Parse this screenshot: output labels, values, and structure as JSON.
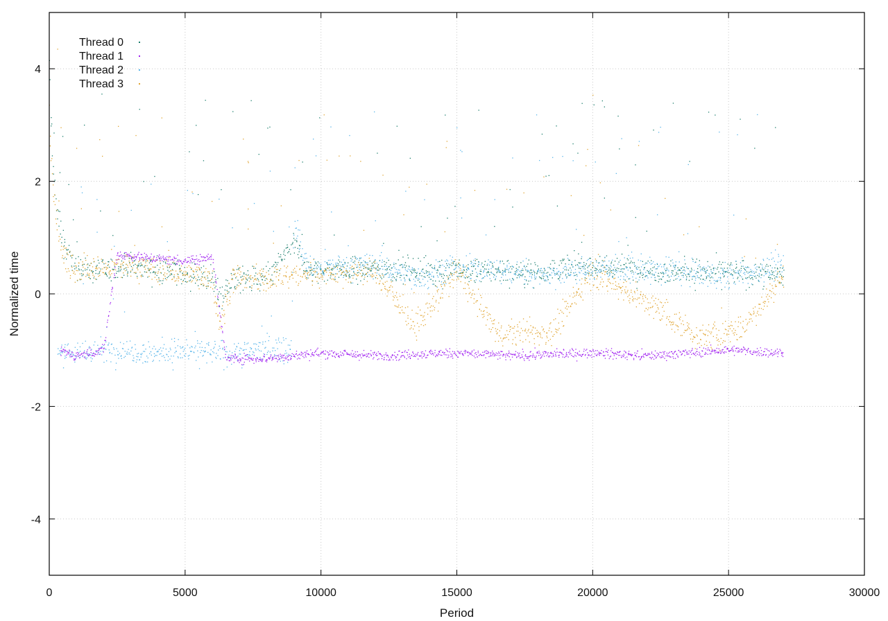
{
  "chart_data": {
    "type": "scatter",
    "xlabel": "Period",
    "ylabel": "Normalized time",
    "xlim": [
      0,
      30000
    ],
    "ylim": [
      -5,
      5
    ],
    "x_ticks": [
      0,
      5000,
      10000,
      15000,
      20000,
      25000,
      30000
    ],
    "y_ticks": [
      -4,
      -2,
      0,
      2,
      4
    ],
    "grid": true,
    "legend_position": "top-left",
    "x_data_extent": [
      0,
      27000
    ],
    "series": [
      {
        "name": "Thread 0",
        "color": "#1a7d6b",
        "marker": "dot",
        "description_points": [
          [
            0,
            4.0
          ],
          [
            150,
            2.2
          ],
          [
            300,
            1.4
          ],
          [
            600,
            0.8
          ],
          [
            1000,
            0.45
          ],
          [
            2000,
            0.4
          ],
          [
            3000,
            0.5
          ],
          [
            4000,
            0.45
          ],
          [
            5000,
            0.35
          ],
          [
            6000,
            0.3
          ],
          [
            6300,
            -0.1
          ],
          [
            6700,
            0.25
          ],
          [
            8000,
            0.25
          ],
          [
            9000,
            0.9
          ],
          [
            9500,
            0.4
          ],
          [
            12000,
            0.45
          ],
          [
            15000,
            0.4
          ],
          [
            18000,
            0.4
          ],
          [
            20000,
            0.5
          ],
          [
            23000,
            0.4
          ],
          [
            27000,
            0.35
          ]
        ]
      },
      {
        "name": "Thread 1",
        "color": "#a020f0",
        "marker": "dot",
        "description_points": [
          [
            400,
            -1.0
          ],
          [
            1000,
            -1.1
          ],
          [
            2000,
            -1.0
          ],
          [
            2500,
            0.7
          ],
          [
            3500,
            0.65
          ],
          [
            4500,
            0.6
          ],
          [
            5500,
            0.6
          ],
          [
            6000,
            0.7
          ],
          [
            6500,
            -1.15
          ],
          [
            8000,
            -1.15
          ],
          [
            9000,
            -1.1
          ],
          [
            10000,
            -1.05
          ],
          [
            12000,
            -1.1
          ],
          [
            15000,
            -1.05
          ],
          [
            17000,
            -1.1
          ],
          [
            20000,
            -1.05
          ],
          [
            22000,
            -1.1
          ],
          [
            25000,
            -1.0
          ],
          [
            27000,
            -1.05
          ]
        ]
      },
      {
        "name": "Thread 2",
        "color": "#56b4e9",
        "marker": "dot",
        "description_points": [
          [
            300,
            -1.0
          ],
          [
            1000,
            -1.05
          ],
          [
            2000,
            -1.0
          ],
          [
            3000,
            -1.0
          ],
          [
            4000,
            -1.05
          ],
          [
            5000,
            -1.0
          ],
          [
            6000,
            -1.05
          ],
          [
            7000,
            -1.05
          ],
          [
            8000,
            -0.95
          ],
          [
            8900,
            -1.0
          ],
          [
            9000,
            1.2
          ],
          [
            9500,
            0.45
          ],
          [
            12000,
            0.5
          ],
          [
            13500,
            0.3
          ],
          [
            15000,
            0.45
          ],
          [
            17000,
            0.4
          ],
          [
            18500,
            0.35
          ],
          [
            20000,
            0.45
          ],
          [
            23000,
            0.4
          ],
          [
            25000,
            0.3
          ],
          [
            27000,
            0.5
          ]
        ]
      },
      {
        "name": "Thread 3",
        "color": "#e0a430",
        "marker": "dot",
        "description_points": [
          [
            0,
            3.0
          ],
          [
            200,
            1.5
          ],
          [
            500,
            0.7
          ],
          [
            1000,
            0.4
          ],
          [
            2000,
            0.45
          ],
          [
            3000,
            0.5
          ],
          [
            4000,
            0.4
          ],
          [
            5000,
            0.35
          ],
          [
            6000,
            0.3
          ],
          [
            6300,
            -0.6
          ],
          [
            6700,
            0.25
          ],
          [
            8000,
            0.25
          ],
          [
            9000,
            0.35
          ],
          [
            12000,
            0.4
          ],
          [
            13500,
            -0.6
          ],
          [
            15000,
            0.4
          ],
          [
            16500,
            -0.7
          ],
          [
            18500,
            -0.7
          ],
          [
            20000,
            0.4
          ],
          [
            22800,
            -0.4
          ],
          [
            24000,
            -0.8
          ],
          [
            25500,
            -0.6
          ],
          [
            27000,
            0.3
          ]
        ]
      }
    ]
  }
}
